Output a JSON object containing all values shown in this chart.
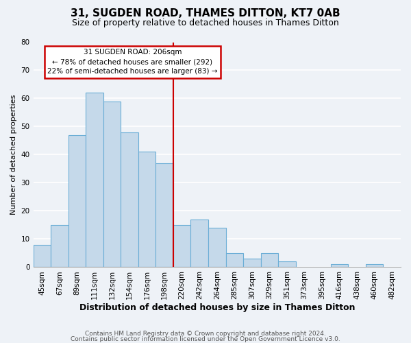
{
  "title": "31, SUGDEN ROAD, THAMES DITTON, KT7 0AB",
  "subtitle": "Size of property relative to detached houses in Thames Ditton",
  "xlabel": "Distribution of detached houses by size in Thames Ditton",
  "ylabel": "Number of detached properties",
  "footer_line1": "Contains HM Land Registry data © Crown copyright and database right 2024.",
  "footer_line2": "Contains public sector information licensed under the Open Government Licence v3.0.",
  "bin_labels": [
    "45sqm",
    "67sqm",
    "89sqm",
    "111sqm",
    "132sqm",
    "154sqm",
    "176sqm",
    "198sqm",
    "220sqm",
    "242sqm",
    "264sqm",
    "285sqm",
    "307sqm",
    "329sqm",
    "351sqm",
    "373sqm",
    "395sqm",
    "416sqm",
    "438sqm",
    "460sqm",
    "482sqm"
  ],
  "bar_heights": [
    8,
    15,
    47,
    62,
    59,
    48,
    41,
    37,
    15,
    17,
    14,
    5,
    3,
    5,
    2,
    0,
    0,
    1,
    0,
    1,
    0
  ],
  "bar_color": "#c5d9ea",
  "bar_edge_color": "#6baed6",
  "vline_index": 7.5,
  "vline_color": "#cc0000",
  "annotation_title": "31 SUGDEN ROAD: 206sqm",
  "annotation_line1": "← 78% of detached houses are smaller (292)",
  "annotation_line2": "22% of semi-detached houses are larger (83) →",
  "annotation_box_facecolor": "#ffffff",
  "annotation_box_edgecolor": "#cc0000",
  "ylim": [
    0,
    80
  ],
  "yticks": [
    0,
    10,
    20,
    30,
    40,
    50,
    60,
    70,
    80
  ],
  "background_color": "#eef2f7",
  "grid_color": "#ffffff",
  "title_fontsize": 11,
  "subtitle_fontsize": 9,
  "xlabel_fontsize": 9,
  "ylabel_fontsize": 8,
  "tick_fontsize": 7.5,
  "footer_fontsize": 6.5
}
